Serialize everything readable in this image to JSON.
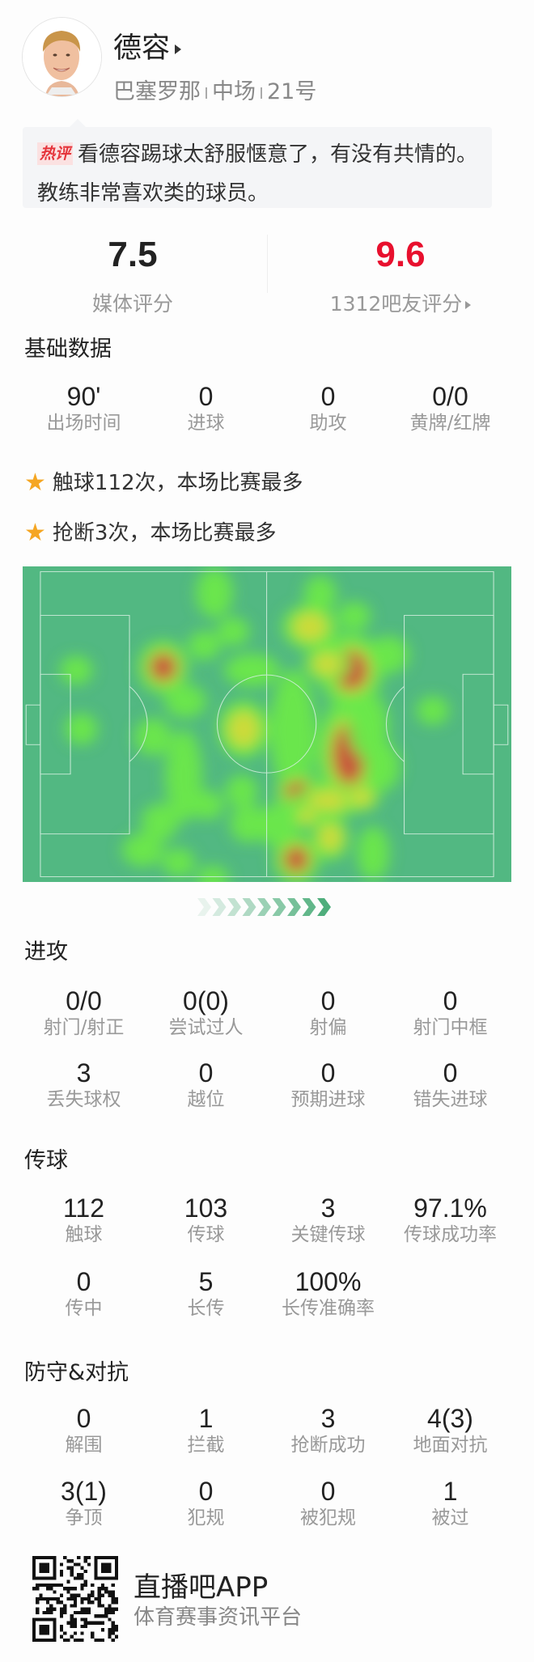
{
  "player": {
    "name": "德容",
    "team": "巴塞罗那",
    "position": "中场",
    "number": "21号"
  },
  "hot_comment": {
    "tag": "热评",
    "text": "看德容踢球太舒服惬意了，有没有共情的。教练非常喜欢类的球员。"
  },
  "ratings": {
    "media": {
      "value": "7.5",
      "label": "媒体评分"
    },
    "fans": {
      "value": "9.6",
      "label": "1312吧友评分",
      "color": "#e8102e"
    }
  },
  "basic": {
    "title": "基础数据",
    "stats": [
      {
        "value": "90'",
        "label": "出场时间"
      },
      {
        "value": "0",
        "label": "进球"
      },
      {
        "value": "0",
        "label": "助攻"
      },
      {
        "value": "0/0",
        "label": "黄牌/红牌"
      }
    ]
  },
  "highlights": [
    {
      "icon": "star-icon",
      "text": "触球112次，本场比赛最多"
    },
    {
      "icon": "star-icon",
      "text": "抢断3次，本场比赛最多"
    }
  ],
  "colors": {
    "pitch": "#52b882",
    "star": "#f5a623",
    "accent_red": "#e8102e"
  },
  "attack": {
    "title": "进攻",
    "rows": [
      [
        {
          "value": "0/0",
          "label": "射门/射正"
        },
        {
          "value": "0(0)",
          "label": "尝试过人"
        },
        {
          "value": "0",
          "label": "射偏"
        },
        {
          "value": "0",
          "label": "射门中框"
        }
      ],
      [
        {
          "value": "3",
          "label": "丢失球权"
        },
        {
          "value": "0",
          "label": "越位"
        },
        {
          "value": "0",
          "label": "预期进球"
        },
        {
          "value": "0",
          "label": "错失进球"
        }
      ]
    ]
  },
  "passing": {
    "title": "传球",
    "rows": [
      [
        {
          "value": "112",
          "label": "触球"
        },
        {
          "value": "103",
          "label": "传球"
        },
        {
          "value": "3",
          "label": "关键传球"
        },
        {
          "value": "97.1%",
          "label": "传球成功率"
        }
      ],
      [
        {
          "value": "0",
          "label": "传中"
        },
        {
          "value": "5",
          "label": "长传"
        },
        {
          "value": "100%",
          "label": "长传准确率"
        }
      ]
    ]
  },
  "defense": {
    "title": "防守&对抗",
    "rows": [
      [
        {
          "value": "0",
          "label": "解围"
        },
        {
          "value": "1",
          "label": "拦截"
        },
        {
          "value": "3",
          "label": "抢断成功"
        },
        {
          "value": "4(3)",
          "label": "地面对抗"
        }
      ],
      [
        {
          "value": "3(1)",
          "label": "争顶"
        },
        {
          "value": "0",
          "label": "犯规"
        },
        {
          "value": "0",
          "label": "被犯规"
        },
        {
          "value": "1",
          "label": "被过"
        }
      ]
    ]
  },
  "footer": {
    "app_name": "直播吧APP",
    "tagline": "体育赛事资讯平台"
  }
}
